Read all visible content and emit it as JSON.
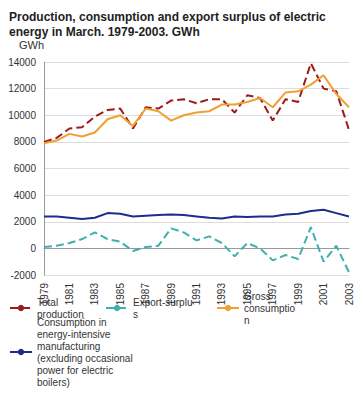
{
  "chart_data": {
    "type": "line",
    "title": "Production, consumption and export surplus of electric energy in March. 1979-2003. GWh",
    "y_label": "GWh",
    "categories": [
      "1979",
      null,
      "1981",
      null,
      "1983",
      null,
      "1985",
      null,
      "1987",
      null,
      "1989",
      null,
      "1991",
      null,
      "1993",
      null,
      "1995",
      null,
      "1997",
      null,
      "1999",
      null,
      "2001",
      null,
      "2003"
    ],
    "ylim": [
      -2000,
      14000
    ],
    "yticks": [
      -2000,
      0,
      2000,
      4000,
      6000,
      8000,
      10000,
      12000,
      14000
    ],
    "grid": true,
    "legend": "bottom",
    "series": [
      {
        "name": "Total production",
        "color": "#9b1b1b",
        "line_style": "dashed",
        "values": [
          8000,
          8300,
          9000,
          9100,
          9900,
          10400,
          10500,
          9000,
          10600,
          10500,
          11100,
          11200,
          10900,
          11200,
          11200,
          10200,
          11500,
          11300,
          9600,
          11200,
          11000,
          13900,
          12000,
          11800,
          8900
        ]
      },
      {
        "name": "Export-surplus",
        "color": "#3fb0ac",
        "line_style": "dashed",
        "values": [
          100,
          200,
          400,
          700,
          1200,
          700,
          500,
          -200,
          100,
          200,
          1500,
          1200,
          600,
          900,
          400,
          -600,
          400,
          0,
          -900,
          -500,
          -800,
          1600,
          -1000,
          200,
          -1800
        ]
      },
      {
        "name": "Gross consumption",
        "color": "#f0a030",
        "line_style": "solid",
        "values": [
          7900,
          8100,
          8600,
          8400,
          8700,
          9700,
          10000,
          9200,
          10500,
          10300,
          9600,
          10000,
          10200,
          10300,
          10800,
          10800,
          11000,
          11300,
          10600,
          11700,
          11800,
          12300,
          13000,
          11600,
          10600
        ]
      },
      {
        "name": "Consumption in energy-intensive manufacturing (excluding occasional power for electric boilers)",
        "color": "#1a2e8c",
        "line_style": "solid",
        "values": [
          2400,
          2400,
          2300,
          2200,
          2300,
          2650,
          2600,
          2400,
          2450,
          2500,
          2550,
          2500,
          2400,
          2300,
          2250,
          2400,
          2350,
          2400,
          2400,
          2550,
          2600,
          2800,
          2900,
          2650,
          2400
        ]
      }
    ]
  }
}
